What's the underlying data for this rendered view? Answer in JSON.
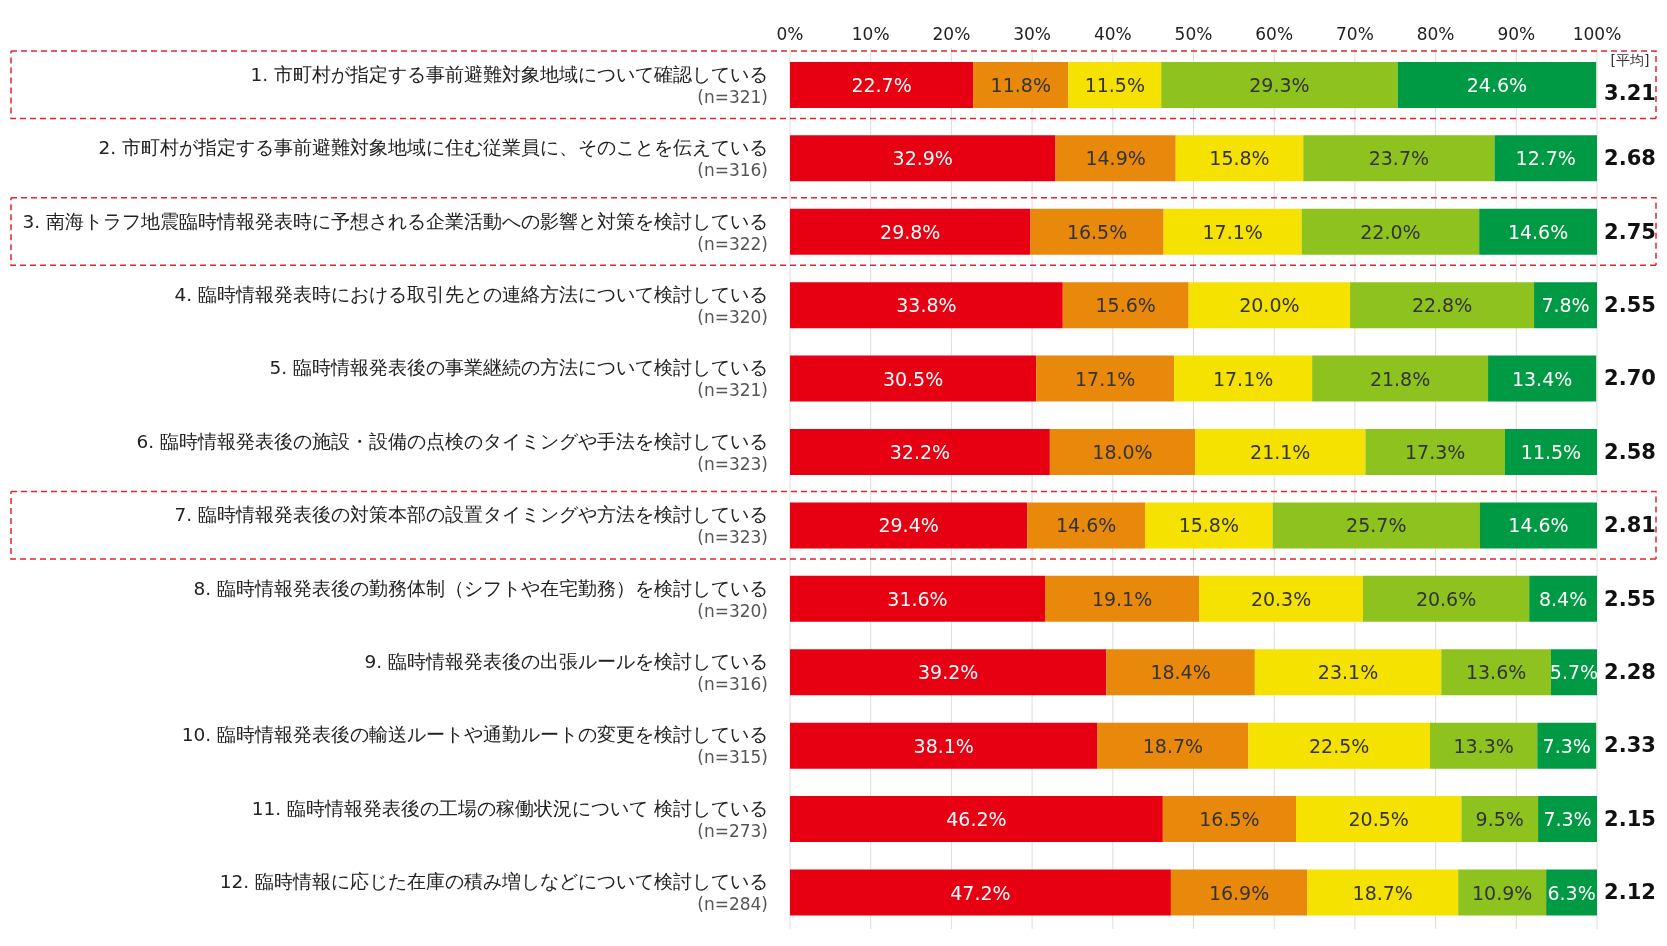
{
  "chart_data": {
    "type": "bar",
    "orientation": "horizontal",
    "stacked": true,
    "categories": [
      "1. 市町村が指定する事前避難対象地域について確認している\n(n=321)",
      "2. 市町村が指定する事前避難対象地域に住む従業員に、そのことを伝えている\n(n=316)",
      "3. 南海トラフ地震臨時情報発表時に予想される企業活動への影響と対策を検討している\n(n=322)",
      "4. 臨時情報発表時における取引先との連絡方法について検討している\n(n=320)",
      "5. 臨時情報発表後の事業継続の方法について検討している\n(n=321)",
      "6. 臨時情報発表後の施設・設備の点検のタイミングや手法を検討している\n(n=323)",
      "7. 臨時情報発表後の対策本部の設置タイミングや方法を検討している\n(n=323)",
      "8. 臨時情報発表後の勤務体制（シフトや在宅勤務）を検討している\n(n=320)",
      "9. 臨時情報発表後の出張ルールを検討している\n(n=316)",
      "10. 臨時情報発表後の輸送ルートや通勤ルートの変更を検討している\n(n=315)",
      "11. 臨時情報発表後の工場の稼働状況について 検討している\n(n=273)",
      "12. 臨時情報に応じた在庫の積み増しなどについて検討している\n(n=284)"
    ],
    "series": [
      {
        "color": "#e60012",
        "values": [
          22.7,
          32.9,
          29.8,
          33.8,
          30.5,
          32.2,
          29.4,
          31.6,
          39.2,
          38.1,
          46.2,
          47.2
        ],
        "value_labels": [
          "22.7%",
          "32.9%",
          "29.8%",
          "33.8%",
          "30.5%",
          "32.2%",
          "29.4%",
          "31.6%",
          "39.2%",
          "38.1%",
          "46.2%",
          "47.2%"
        ]
      },
      {
        "color": "#e8890c",
        "values": [
          11.8,
          14.9,
          16.5,
          15.6,
          17.1,
          18.0,
          14.6,
          19.1,
          18.4,
          18.7,
          16.5,
          16.9
        ],
        "value_labels": [
          "11.8%",
          "14.9%",
          "16.5%",
          "15.6%",
          "17.1%",
          "18.0%",
          "14.6%",
          "19.1%",
          "18.4%",
          "18.7%",
          "16.5%",
          "16.9%"
        ]
      },
      {
        "color": "#f6e200",
        "values": [
          11.5,
          15.8,
          17.1,
          20.0,
          17.1,
          21.1,
          15.8,
          20.3,
          23.1,
          22.5,
          20.5,
          18.7
        ],
        "value_labels": [
          "11.5%",
          "15.8%",
          "17.1%",
          "20.0%",
          "17.1%",
          "21.1%",
          "15.8%",
          "20.3%",
          "23.1%",
          "22.5%",
          "20.5%",
          "18.7%"
        ]
      },
      {
        "color": "#8dc21f",
        "values": [
          29.3,
          23.7,
          22.0,
          22.8,
          21.8,
          17.3,
          25.7,
          20.6,
          13.6,
          13.3,
          9.5,
          10.9
        ],
        "value_labels": [
          "29.3%",
          "23.7%",
          "22.0%",
          "22.8%",
          "21.8%",
          "17.3%",
          "25.7%",
          "20.6%",
          "13.6%",
          "13.3%",
          "9.5%",
          "10.9%"
        ]
      },
      {
        "color": "#009944",
        "values": [
          24.6,
          12.7,
          14.6,
          7.8,
          13.4,
          11.5,
          14.6,
          8.4,
          5.7,
          7.3,
          7.3,
          6.3
        ],
        "value_labels": [
          "24.6%",
          "12.7%",
          "14.6%",
          "7.8%",
          "13.4%",
          "11.5%",
          "14.6%",
          "8.4%",
          "5.7%",
          "7.3%",
          "7.3%",
          "6.3%"
        ]
      }
    ],
    "xlim": [
      0,
      100
    ],
    "xticks": [
      {
        "value": 0,
        "label": "0%"
      },
      {
        "value": 10,
        "label": "10%"
      },
      {
        "value": 20,
        "label": "20%"
      },
      {
        "value": 30,
        "label": "30%"
      },
      {
        "value": 40,
        "label": "40%"
      },
      {
        "value": 50,
        "label": "50%"
      },
      {
        "value": 60,
        "label": "60%"
      },
      {
        "value": 70,
        "label": "70%"
      },
      {
        "value": 80,
        "label": "80%"
      },
      {
        "value": 90,
        "label": "90%"
      },
      {
        "value": 100,
        "label": "100%"
      }
    ],
    "grid": "x",
    "legend": false,
    "annotations": [
      "[平均]",
      "3.21",
      "2.68",
      "2.75",
      "2.55",
      "2.70",
      "2.58",
      "2.81",
      "2.55",
      "2.28",
      "2.33",
      "2.15",
      "2.12"
    ]
  }
}
